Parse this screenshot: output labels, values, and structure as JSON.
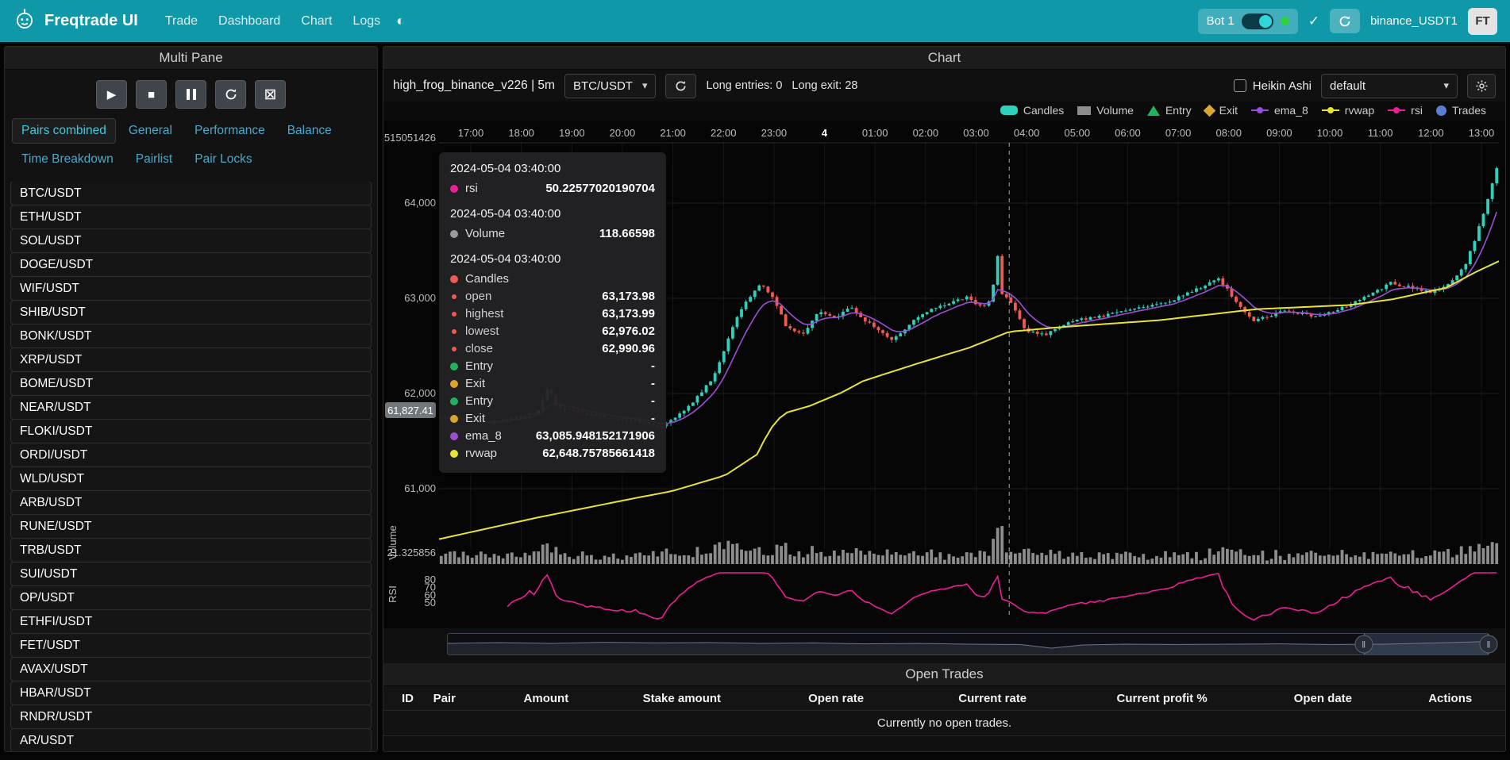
{
  "navbar": {
    "brand": "Freqtrade UI",
    "links": [
      "Trade",
      "Dashboard",
      "Chart",
      "Logs"
    ],
    "bot": {
      "name": "Bot 1",
      "online_color": "#31d23a"
    },
    "exchange_label": "binance_USDT1",
    "avatar": "FT"
  },
  "sidebar": {
    "title": "Multi Pane",
    "active_tab": "Pairs combined",
    "tabs_row1": [
      "Pairs combined",
      "General",
      "Performance",
      "Balance"
    ],
    "tabs_row2": [
      "Time Breakdown",
      "Pairlist",
      "Pair Locks"
    ],
    "pairs": [
      "BTC/USDT",
      "ETH/USDT",
      "SOL/USDT",
      "DOGE/USDT",
      "WIF/USDT",
      "SHIB/USDT",
      "BONK/USDT",
      "XRP/USDT",
      "BOME/USDT",
      "NEAR/USDT",
      "FLOKI/USDT",
      "ORDI/USDT",
      "WLD/USDT",
      "ARB/USDT",
      "RUNE/USDT",
      "TRB/USDT",
      "SUI/USDT",
      "OP/USDT",
      "ETHFI/USDT",
      "FET/USDT",
      "AVAX/USDT",
      "HBAR/USDT",
      "RNDR/USDT",
      "AR/USDT"
    ]
  },
  "chart": {
    "title": "Chart",
    "strategy_label": "high_frog_binance_v226 | 5m",
    "pair_select": "BTC/USDT",
    "entries_label": "Long entries: 0",
    "exits_label": "Long exit: 28",
    "heikin_label": "Heikin Ashi",
    "plot_config_select": "default",
    "legend": [
      {
        "label": "Candles",
        "shape": "pill",
        "color": "#2fd0bc"
      },
      {
        "label": "Volume",
        "shape": "rect",
        "color": "#8d8d8d"
      },
      {
        "label": "Entry",
        "shape": "triangle",
        "color": "#21b35b"
      },
      {
        "label": "Exit",
        "shape": "diamond",
        "color": "#d9a62e"
      },
      {
        "label": "ema_8",
        "shape": "line",
        "color": "#9b4fd6"
      },
      {
        "label": "rvwap",
        "shape": "line",
        "color": "#e8e337"
      },
      {
        "label": "rsi",
        "shape": "line",
        "color": "#ed1e96"
      },
      {
        "label": "Trades",
        "shape": "circle",
        "color": "#5b7fd0"
      }
    ],
    "tooltip": {
      "sections": [
        {
          "time": "2024-05-04 03:40:00",
          "rows": [
            {
              "dot": "#ed1e96",
              "label": "rsi",
              "value": "50.22577020190704"
            }
          ]
        },
        {
          "time": "2024-05-04 03:40:00",
          "rows": [
            {
              "dot": "#9a9a9a",
              "label": "Volume",
              "value": "118.66598"
            }
          ]
        },
        {
          "time": "2024-05-04 03:40:00",
          "rows": [
            {
              "dot": "#f05a52",
              "label": "Candles",
              "value": ""
            },
            {
              "dot": "#f05a52",
              "label": "open",
              "value": "63,173.98",
              "sub": true
            },
            {
              "dot": "#f05a52",
              "label": "highest",
              "value": "63,173.99",
              "sub": true
            },
            {
              "dot": "#f05a52",
              "label": "lowest",
              "value": "62,976.02",
              "sub": true
            },
            {
              "dot": "#f05a52",
              "label": "close",
              "value": "62,990.96",
              "sub": true
            },
            {
              "dot": "#21b35b",
              "label": "Entry",
              "value": "-"
            },
            {
              "dot": "#d9a62e",
              "label": "Exit",
              "value": "-"
            },
            {
              "dot": "#21b35b",
              "label": "Entry",
              "value": "-"
            },
            {
              "dot": "#d9a62e",
              "label": "Exit",
              "value": "-"
            },
            {
              "dot": "#9b4fd6",
              "label": "ema_8",
              "value": "63,085.948152171906"
            },
            {
              "dot": "#e8e337",
              "label": "rvwap",
              "value": "62,648.75785661418"
            }
          ]
        }
      ]
    }
  },
  "chart_data": {
    "type": "candlestick",
    "pair": "BTC/USDT",
    "timeframe": "5m",
    "x_labels": [
      "17:00",
      "18:00",
      "19:00",
      "20:00",
      "21:00",
      "22:00",
      "23:00",
      "4",
      "01:00",
      "02:00",
      "03:00",
      "04:00",
      "05:00",
      "06:00",
      "07:00",
      "08:00",
      "09:00",
      "10:00",
      "11:00",
      "12:00",
      "13:00"
    ],
    "y_ticks": [
      {
        "value": 64000,
        "label": "64,000"
      },
      {
        "value": 63000,
        "label": "63,000"
      },
      {
        "value": 62000,
        "label": "62,000"
      },
      {
        "value": 61000,
        "label": "61,000"
      }
    ],
    "y_axis_top_label": "515051426",
    "volume_axis_label": "21.325856",
    "price_axis_marker": "61,827.41",
    "pane_labels": {
      "volume": "Volume",
      "rsi": "RSI"
    },
    "rsi_ticks": [
      80,
      70,
      60,
      50
    ],
    "crosshair_time": "2024-05-04 03:40:00",
    "crosshair_t": 0.538,
    "colors": {
      "up": "#2fd0bc",
      "down": "#f05a52",
      "ema_8": "#9b4fd6",
      "rvwap": "#e8e337",
      "rsi": "#ed1e96",
      "volume": "#8d8d8d"
    },
    "price_keypoints": [
      [
        0,
        61750
      ],
      [
        0.05,
        61690
      ],
      [
        0.095,
        61800
      ],
      [
        0.105,
        62060
      ],
      [
        0.115,
        61850
      ],
      [
        0.15,
        61760
      ],
      [
        0.19,
        61720
      ],
      [
        0.21,
        61650
      ],
      [
        0.235,
        61830
      ],
      [
        0.26,
        62150
      ],
      [
        0.285,
        62850
      ],
      [
        0.305,
        63160
      ],
      [
        0.318,
        63000
      ],
      [
        0.33,
        62700
      ],
      [
        0.345,
        62620
      ],
      [
        0.36,
        62860
      ],
      [
        0.375,
        62790
      ],
      [
        0.39,
        62910
      ],
      [
        0.405,
        62760
      ],
      [
        0.43,
        62560
      ],
      [
        0.45,
        62770
      ],
      [
        0.47,
        62900
      ],
      [
        0.5,
        63010
      ],
      [
        0.515,
        62900
      ],
      [
        0.524,
        63000
      ],
      [
        0.528,
        63560
      ],
      [
        0.533,
        63060
      ],
      [
        0.54,
        62990
      ],
      [
        0.555,
        62660
      ],
      [
        0.575,
        62620
      ],
      [
        0.6,
        62760
      ],
      [
        0.63,
        62820
      ],
      [
        0.66,
        62900
      ],
      [
        0.69,
        62960
      ],
      [
        0.72,
        63110
      ],
      [
        0.738,
        63210
      ],
      [
        0.755,
        62950
      ],
      [
        0.77,
        62760
      ],
      [
        0.8,
        62870
      ],
      [
        0.83,
        62810
      ],
      [
        0.86,
        62920
      ],
      [
        0.885,
        63060
      ],
      [
        0.9,
        63160
      ],
      [
        0.92,
        63110
      ],
      [
        0.94,
        63060
      ],
      [
        0.955,
        63160
      ],
      [
        0.97,
        63330
      ],
      [
        0.982,
        63700
      ],
      [
        0.992,
        64050
      ],
      [
        1,
        64380
      ]
    ],
    "rvwap_keypoints": [
      [
        0,
        60470
      ],
      [
        0.09,
        60690
      ],
      [
        0.18,
        60890
      ],
      [
        0.22,
        60975
      ],
      [
        0.27,
        61140
      ],
      [
        0.3,
        61360
      ],
      [
        0.312,
        61620
      ],
      [
        0.325,
        61790
      ],
      [
        0.35,
        61870
      ],
      [
        0.38,
        62010
      ],
      [
        0.4,
        62130
      ],
      [
        0.45,
        62310
      ],
      [
        0.5,
        62480
      ],
      [
        0.538,
        62649
      ],
      [
        0.59,
        62700
      ],
      [
        0.68,
        62770
      ],
      [
        0.77,
        62885
      ],
      [
        0.86,
        62930
      ],
      [
        0.9,
        62990
      ],
      [
        0.95,
        63110
      ],
      [
        0.977,
        63270
      ],
      [
        1,
        63390
      ]
    ],
    "navigator": [
      [
        0,
        0.45
      ],
      [
        0.05,
        0.4
      ],
      [
        0.1,
        0.45
      ],
      [
        0.15,
        0.38
      ],
      [
        0.2,
        0.42
      ],
      [
        0.25,
        0.4
      ],
      [
        0.3,
        0.45
      ],
      [
        0.35,
        0.42
      ],
      [
        0.4,
        0.48
      ],
      [
        0.45,
        0.45
      ],
      [
        0.5,
        0.5
      ],
      [
        0.55,
        0.52
      ],
      [
        0.58,
        0.75
      ],
      [
        0.61,
        0.55
      ],
      [
        0.65,
        0.5
      ],
      [
        0.7,
        0.52
      ],
      [
        0.75,
        0.5
      ],
      [
        0.8,
        0.48
      ],
      [
        0.85,
        0.52
      ],
      [
        0.9,
        0.5
      ],
      [
        0.95,
        0.42
      ],
      [
        1,
        0.33
      ]
    ]
  },
  "open_trades": {
    "title": "Open Trades",
    "columns": [
      "ID",
      "Pair",
      "Amount",
      "Stake amount",
      "Open rate",
      "Current rate",
      "Current profit %",
      "Open date",
      "Actions"
    ],
    "empty_message": "Currently no open trades."
  }
}
